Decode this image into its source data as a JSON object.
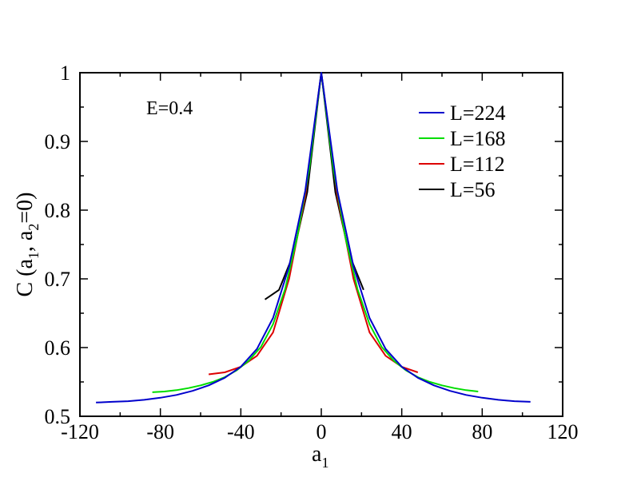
{
  "chart_data": {
    "type": "line",
    "title": "",
    "xlabel_main": "a",
    "xlabel_sub": "1",
    "ylabel_parts": [
      "C (a",
      "1",
      ", a",
      "2",
      "=0)"
    ],
    "annotation": "E=0.4",
    "xlim": [
      -120,
      120
    ],
    "ylim": [
      0.5,
      1.0
    ],
    "xticks": [
      -120,
      -80,
      -40,
      0,
      40,
      80,
      120
    ],
    "xtick_labels": [
      "-120",
      "-80",
      "-40",
      "0",
      "40",
      "80",
      "120"
    ],
    "yticks": [
      0.5,
      0.6,
      0.7,
      0.8,
      0.9,
      1.0
    ],
    "ytick_labels": [
      "0.5",
      "0.6",
      "0.7",
      "0.8",
      "0.9",
      "1"
    ],
    "grid": false,
    "legend_position": "top-right",
    "series": [
      {
        "name": "L=224",
        "color": "#0000cc",
        "x": [
          -112,
          -104,
          -96,
          -88,
          -80,
          -72,
          -64,
          -56,
          -48,
          -40,
          -32,
          -24,
          -16,
          -8,
          0,
          8,
          16,
          24,
          32,
          40,
          48,
          56,
          64,
          72,
          80,
          88,
          96,
          104
        ],
        "y": [
          0.52,
          0.521,
          0.522,
          0.524,
          0.527,
          0.531,
          0.537,
          0.545,
          0.556,
          0.572,
          0.598,
          0.643,
          0.718,
          0.828,
          1.0,
          0.828,
          0.718,
          0.643,
          0.598,
          0.572,
          0.556,
          0.545,
          0.537,
          0.531,
          0.527,
          0.524,
          0.522,
          0.521
        ]
      },
      {
        "name": "L=168",
        "color": "#00dd00",
        "x": [
          -84,
          -78,
          -72,
          -66,
          -60,
          -54,
          -48,
          -42,
          -36,
          -30,
          -24,
          -18,
          -12,
          -6,
          0,
          6,
          12,
          18,
          24,
          30,
          36,
          42,
          48,
          54,
          60,
          66,
          72,
          78
        ],
        "y": [
          0.535,
          0.536,
          0.538,
          0.541,
          0.545,
          0.55,
          0.557,
          0.567,
          0.581,
          0.601,
          0.634,
          0.685,
          0.76,
          0.86,
          1.0,
          0.86,
          0.76,
          0.685,
          0.634,
          0.601,
          0.581,
          0.567,
          0.557,
          0.55,
          0.545,
          0.541,
          0.538,
          0.536
        ]
      },
      {
        "name": "L=112",
        "color": "#dd0000",
        "x": [
          -56,
          -48,
          -40,
          -32,
          -24,
          -16,
          -8,
          0,
          8,
          16,
          24,
          32,
          40,
          48
        ],
        "y": [
          0.561,
          0.564,
          0.572,
          0.588,
          0.622,
          0.7,
          0.82,
          1.0,
          0.82,
          0.7,
          0.622,
          0.588,
          0.572,
          0.564
        ]
      },
      {
        "name": "L=56",
        "color": "#000000",
        "x": [
          -28,
          -21,
          -14,
          -7,
          0,
          7,
          14,
          21
        ],
        "y": [
          0.67,
          0.684,
          0.735,
          0.826,
          1.0,
          0.826,
          0.735,
          0.684
        ]
      }
    ]
  }
}
